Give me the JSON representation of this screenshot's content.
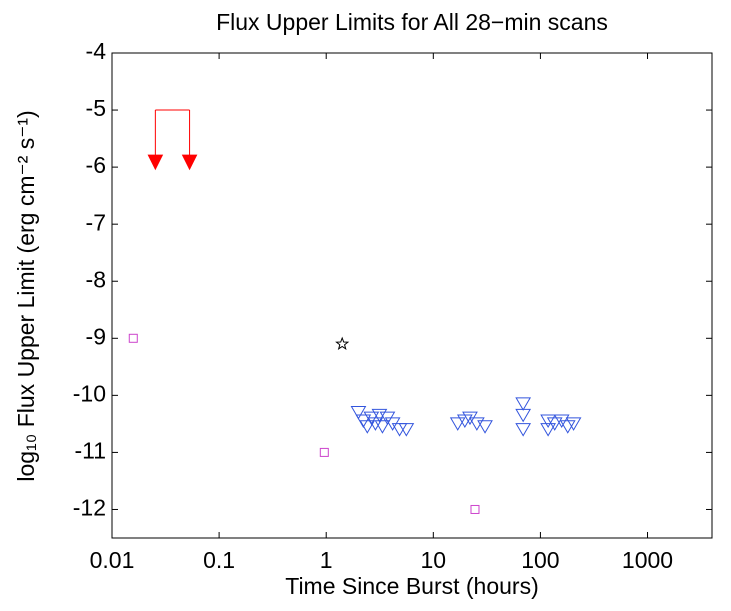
{
  "chart_data": {
    "type": "scatter",
    "title": "Flux Upper Limits for All 28−min scans",
    "x_label": "Time Since Burst (hours)",
    "y_label": "log₁₀ Flux Upper Limit (erg cm⁻² s⁻¹)",
    "x_scale": "log",
    "xlim": [
      0.01,
      4000
    ],
    "xticks": [
      0.01,
      0.1,
      1,
      10,
      100,
      1000
    ],
    "ylim": [
      -12.5,
      -4
    ],
    "yticks": [
      -12,
      -11,
      -10,
      -9,
      -8,
      -7,
      -6,
      -5,
      -4
    ],
    "grid": false,
    "series": [
      {
        "marker": "arrow",
        "color": "#ff0000",
        "x": [
          0.0254,
          0.053
        ],
        "values": [
          -6,
          -6
        ],
        "bracket_top": -5
      },
      {
        "marker": "square",
        "color": "#cc44cc",
        "x": [
          0.0158,
          0.96,
          24.5
        ],
        "values": [
          -9,
          -11,
          -12
        ]
      },
      {
        "marker": "star",
        "color": "#000000",
        "x": [
          1.41
        ],
        "values": [
          -9.1
        ]
      },
      {
        "marker": "triangle-down",
        "color": "#3355dd",
        "x": [
          2.0,
          2.22,
          2.42,
          2.64,
          2.88,
          3.14,
          3.35,
          3.73,
          4.17,
          4.84,
          5.6,
          16.9,
          19.7,
          22,
          25.5,
          30.4,
          69,
          69,
          69,
          118,
          118,
          136,
          158,
          180,
          204
        ],
        "values": [
          -10.3,
          -10.45,
          -10.55,
          -10.4,
          -10.5,
          -10.35,
          -10.55,
          -10.4,
          -10.5,
          -10.6,
          -10.6,
          -10.5,
          -10.45,
          -10.4,
          -10.5,
          -10.55,
          -10.15,
          -10.35,
          -10.6,
          -10.45,
          -10.6,
          -10.5,
          -10.45,
          -10.55,
          -10.5
        ]
      }
    ]
  }
}
